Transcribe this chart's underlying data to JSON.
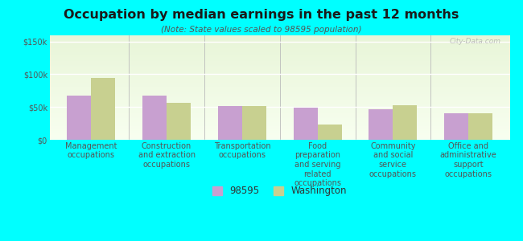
{
  "title": "Occupation by median earnings in the past 12 months",
  "subtitle": "(Note: State values scaled to 98595 population)",
  "categories": [
    "Management\noccupations",
    "Construction\nand extraction\noccupations",
    "Transportation\noccupations",
    "Food\npreparation\nand serving\nrelated\noccupations",
    "Community\nand social\nservice\noccupations",
    "Office and\nadministrative\nsupport\noccupations"
  ],
  "values_98595": [
    68000,
    68000,
    51000,
    49000,
    46000,
    40000
  ],
  "values_washington": [
    95000,
    57000,
    52000,
    23000,
    53000,
    41000
  ],
  "color_98595": "#c8a0d0",
  "color_washington": "#c8d090",
  "background_color": "#00ffff",
  "ylim": [
    0,
    160000
  ],
  "yticks": [
    0,
    50000,
    100000,
    150000
  ],
  "ytick_labels": [
    "$0",
    "$50k",
    "$100k",
    "$150k"
  ],
  "legend_label_98595": "98595",
  "legend_label_washington": "Washington",
  "watermark": "City-Data.com",
  "bar_width": 0.32,
  "title_fontsize": 11.5,
  "subtitle_fontsize": 7.5,
  "tick_fontsize": 7,
  "legend_fontsize": 8.5
}
